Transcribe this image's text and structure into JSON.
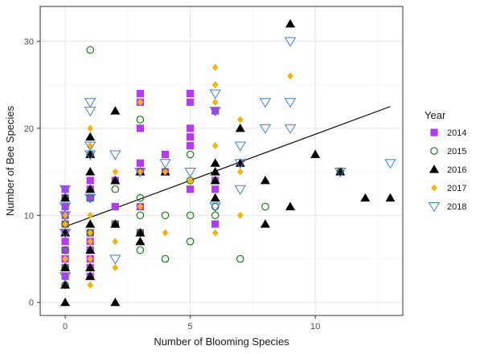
{
  "chart_data": {
    "type": "scatter",
    "xlabel": "Number of Blooming Species",
    "ylabel": "Number of Bee Species",
    "xlim": [
      -1,
      13.5
    ],
    "ylim": [
      -1.5,
      34
    ],
    "xticks": [
      0,
      5,
      10
    ],
    "yticks": [
      0,
      10,
      20,
      30
    ],
    "x_tick_labels": [
      "0",
      "5",
      "10"
    ],
    "y_tick_labels": [
      "0",
      "10",
      "20",
      "30"
    ],
    "grid": true,
    "legend": {
      "title": "Year",
      "position": "right"
    },
    "trend_line": {
      "x": [
        0,
        13
      ],
      "y": [
        8.7,
        22.5
      ]
    },
    "series": [
      {
        "name": "2014",
        "marker": "square",
        "color": "#b13bf0",
        "points": [
          [
            0,
            13
          ],
          [
            0,
            12
          ],
          [
            0,
            11
          ],
          [
            0,
            10
          ],
          [
            0,
            9
          ],
          [
            0,
            8
          ],
          [
            0,
            7
          ],
          [
            0,
            6
          ],
          [
            0,
            5
          ],
          [
            0,
            4
          ],
          [
            0,
            3
          ],
          [
            1,
            14
          ],
          [
            1,
            13
          ],
          [
            1,
            12
          ],
          [
            1,
            8
          ],
          [
            1,
            7
          ],
          [
            1,
            6
          ],
          [
            1,
            5
          ],
          [
            1,
            4
          ],
          [
            1,
            3
          ],
          [
            2,
            14
          ],
          [
            2,
            11
          ],
          [
            2,
            9
          ],
          [
            3,
            24
          ],
          [
            3,
            23
          ],
          [
            3,
            20
          ],
          [
            3,
            16
          ],
          [
            3,
            15
          ],
          [
            3,
            11
          ],
          [
            3,
            8
          ],
          [
            4,
            17
          ],
          [
            4,
            15
          ],
          [
            5,
            24
          ],
          [
            5,
            23
          ],
          [
            5,
            20
          ],
          [
            5,
            19
          ],
          [
            5,
            18
          ],
          [
            5,
            13
          ],
          [
            6,
            22
          ],
          [
            6,
            14
          ],
          [
            6,
            13
          ],
          [
            6,
            9
          ]
        ]
      },
      {
        "name": "2015",
        "marker": "circle-open",
        "color": "#1a7a1a",
        "points": [
          [
            0,
            12
          ],
          [
            0,
            9
          ],
          [
            0,
            6
          ],
          [
            0,
            4
          ],
          [
            0,
            2
          ],
          [
            1,
            29
          ],
          [
            1,
            17
          ],
          [
            1,
            12
          ],
          [
            1,
            8
          ],
          [
            2,
            13
          ],
          [
            2,
            9
          ],
          [
            3,
            21
          ],
          [
            3,
            12
          ],
          [
            3,
            10
          ],
          [
            3,
            8
          ],
          [
            3,
            6
          ],
          [
            4,
            10
          ],
          [
            4,
            5
          ],
          [
            5,
            17
          ],
          [
            5,
            14
          ],
          [
            5,
            10
          ],
          [
            5,
            7
          ],
          [
            6,
            11
          ],
          [
            6,
            10
          ],
          [
            7,
            5
          ],
          [
            8,
            11
          ],
          [
            11,
            15
          ]
        ]
      },
      {
        "name": "2016",
        "marker": "triangle",
        "color": "#000000",
        "points": [
          [
            0,
            12
          ],
          [
            0,
            8
          ],
          [
            0,
            4
          ],
          [
            0,
            2
          ],
          [
            0,
            0
          ],
          [
            1,
            19
          ],
          [
            1,
            17
          ],
          [
            1,
            15
          ],
          [
            1,
            13
          ],
          [
            1,
            9
          ],
          [
            1,
            6
          ],
          [
            1,
            4
          ],
          [
            1,
            3
          ],
          [
            2,
            22
          ],
          [
            2,
            14
          ],
          [
            2,
            9
          ],
          [
            2,
            0
          ],
          [
            3,
            15
          ],
          [
            3,
            8
          ],
          [
            3,
            7
          ],
          [
            4,
            15
          ],
          [
            6,
            16
          ],
          [
            6,
            15
          ],
          [
            6,
            14
          ],
          [
            6,
            12
          ],
          [
            7,
            20
          ],
          [
            7,
            16
          ],
          [
            8,
            14
          ],
          [
            8,
            9
          ],
          [
            9,
            32
          ],
          [
            9,
            11
          ],
          [
            10,
            17
          ],
          [
            11,
            15
          ],
          [
            12,
            12
          ],
          [
            13,
            12
          ]
        ]
      },
      {
        "name": "2017",
        "marker": "diamond",
        "color": "#f5b20e",
        "points": [
          [
            0,
            10
          ],
          [
            0,
            9
          ],
          [
            0,
            5
          ],
          [
            1,
            20
          ],
          [
            1,
            18
          ],
          [
            1,
            10
          ],
          [
            1,
            8
          ],
          [
            1,
            7
          ],
          [
            1,
            5
          ],
          [
            1,
            2
          ],
          [
            2,
            15
          ],
          [
            2,
            7
          ],
          [
            2,
            4
          ],
          [
            3,
            23
          ],
          [
            3,
            15
          ],
          [
            3,
            11
          ],
          [
            4,
            15
          ],
          [
            4,
            8
          ],
          [
            5,
            14
          ],
          [
            6,
            27
          ],
          [
            6,
            25
          ],
          [
            6,
            23
          ],
          [
            6,
            18
          ],
          [
            6,
            8
          ],
          [
            7,
            21
          ],
          [
            7,
            15
          ],
          [
            7,
            10
          ],
          [
            9,
            26
          ]
        ]
      },
      {
        "name": "2018",
        "marker": "triangle-down-open",
        "color": "#3f7fd0",
        "points": [
          [
            0,
            13
          ],
          [
            0,
            11
          ],
          [
            0,
            10
          ],
          [
            0,
            8
          ],
          [
            0,
            3
          ],
          [
            1,
            23
          ],
          [
            1,
            22
          ],
          [
            1,
            18
          ],
          [
            1,
            17
          ],
          [
            1,
            12
          ],
          [
            2,
            17
          ],
          [
            2,
            5
          ],
          [
            3,
            15
          ],
          [
            4,
            16
          ],
          [
            5,
            15
          ],
          [
            6,
            24
          ],
          [
            6,
            22
          ],
          [
            6,
            11
          ],
          [
            7,
            18
          ],
          [
            7,
            16
          ],
          [
            7,
            13
          ],
          [
            8,
            23
          ],
          [
            8,
            20
          ],
          [
            9,
            30
          ],
          [
            9,
            23
          ],
          [
            9,
            20
          ],
          [
            11,
            15
          ],
          [
            13,
            16
          ]
        ]
      }
    ]
  }
}
